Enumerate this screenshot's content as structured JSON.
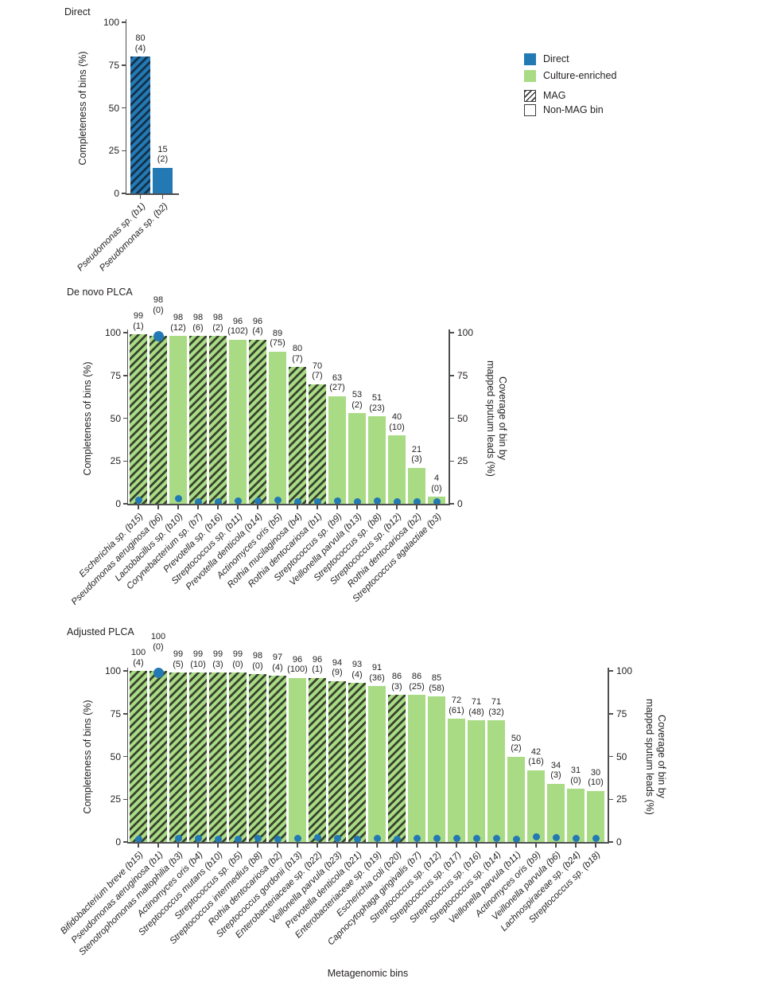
{
  "colors": {
    "direct_blue": "#2379b4",
    "culture_green": "#a9db85",
    "blue_hatch": "#14314a",
    "green_hatch": "#39442f",
    "dot_blue": "#2379b4",
    "axis_gray": "#4d4e50",
    "text": "#231f20"
  },
  "legend": {
    "items": [
      {
        "label": "Direct",
        "swatch": "direct"
      },
      {
        "label": "Culture-enriched",
        "swatch": "culture"
      },
      {
        "label": "MAG",
        "swatch": "mag"
      },
      {
        "label": "Non-MAG bin",
        "swatch": "nonmag"
      }
    ]
  },
  "chart_data": [
    {
      "type": "bar",
      "title": "Direct",
      "ylabel": "Completeness of bins (%)",
      "ylim": [
        0,
        100
      ],
      "yticks": [
        0,
        25,
        50,
        75,
        100
      ],
      "color_group": "blue",
      "bars": [
        {
          "label": "Pseudomonas sp. (b1)",
          "value": 80,
          "n": 4,
          "mag": true,
          "dot": null
        },
        {
          "label": "Pseudomonas sp. (b2)",
          "value": 15,
          "n": 2,
          "mag": false,
          "dot": null
        }
      ]
    },
    {
      "type": "bar",
      "title": "De novo PLCA",
      "ylabel": "Completeness of bins (%)",
      "y2label_lines": [
        "Coverage of bin by",
        "mapped sputum leads (%)"
      ],
      "ylim": [
        0,
        100
      ],
      "y2lim": [
        0,
        100
      ],
      "yticks": [
        0,
        25,
        50,
        75,
        100
      ],
      "y2ticks": [
        0,
        25,
        50,
        75,
        100
      ],
      "color_group": "green",
      "bars": [
        {
          "label": "Escherichia sp. (b15)",
          "value": 99,
          "n": 1,
          "mag": true,
          "dot": 2
        },
        {
          "label": "Pseudomonas aeruginosa (b6)",
          "value": 98,
          "n": 0,
          "mag": true,
          "dot": 98,
          "raise": 22
        },
        {
          "label": "Lactobacillus sp. (b10)",
          "value": 98,
          "n": 12,
          "mag": false,
          "dot": 3
        },
        {
          "label": "Corynebacterium sp. (b7)",
          "value": 98,
          "n": 6,
          "mag": true,
          "dot": 1
        },
        {
          "label": "Prevotella sp. (b16)",
          "value": 98,
          "n": 2,
          "mag": true,
          "dot": 1
        },
        {
          "label": "Streptococcus sp. (b11)",
          "value": 96,
          "n": 102,
          "mag": false,
          "dot": 1.5
        },
        {
          "label": "Prevotella denticola (b14)",
          "value": 96,
          "n": 4,
          "mag": true,
          "dot": 1.5
        },
        {
          "label": "Actinomyces oris (b5)",
          "value": 89,
          "n": 75,
          "mag": false,
          "dot": 2
        },
        {
          "label": "Rothia mucilaginosa (b4)",
          "value": 80,
          "n": 7,
          "mag": true,
          "dot": 1
        },
        {
          "label": "Rothia dentocariosa (b1)",
          "value": 70,
          "n": 7,
          "mag": true,
          "dot": 1
        },
        {
          "label": "Streptococcus sp. (b9)",
          "value": 63,
          "n": 27,
          "mag": false,
          "dot": 1.5
        },
        {
          "label": "Veillonella parvula (b13)",
          "value": 53,
          "n": 2,
          "mag": false,
          "dot": 1
        },
        {
          "label": "Streptococcus sp. (b8)",
          "value": 51,
          "n": 23,
          "mag": false,
          "dot": 1.5
        },
        {
          "label": "Streptococcus sp. (b12)",
          "value": 40,
          "n": 10,
          "mag": false,
          "dot": 1
        },
        {
          "label": "Rothia dentocariosa (b2)",
          "value": 21,
          "n": 3,
          "mag": false,
          "dot": 1
        },
        {
          "label": "Streptococcus agalactiae (b3)",
          "value": 4,
          "n": 0,
          "mag": false,
          "dot": 1
        }
      ]
    },
    {
      "type": "bar",
      "title": "Adjusted PLCA",
      "ylabel": "Completeness of bins (%)",
      "y2label_lines": [
        "Coverage of bin by",
        "mapped sputum leads (%)"
      ],
      "xlabel": "Metagenomic bins",
      "ylim": [
        0,
        100
      ],
      "y2lim": [
        0,
        100
      ],
      "yticks": [
        0,
        25,
        50,
        75,
        100
      ],
      "y2ticks": [
        0,
        25,
        50,
        75,
        100
      ],
      "color_group": "green",
      "bars": [
        {
          "label": "Bifidobacterium breve (b15)",
          "value": 100,
          "n": 4,
          "mag": true,
          "dot": 1.5
        },
        {
          "label": "Pseudomonas aeruginosa (b1)",
          "value": 100,
          "n": 0,
          "mag": true,
          "dot": 99,
          "raise": 20
        },
        {
          "label": "Stenotrophomonas maltophilia (b3)",
          "value": 99,
          "n": 5,
          "mag": true,
          "dot": 2
        },
        {
          "label": "Actinomyces oris (b4)",
          "value": 99,
          "n": 10,
          "mag": true,
          "dot": 2
        },
        {
          "label": "Streptococcus mutans (b10)",
          "value": 99,
          "n": 3,
          "mag": true,
          "dot": 1.5
        },
        {
          "label": "Streptococcus sp. (b5)",
          "value": 99,
          "n": 0,
          "mag": true,
          "dot": 1.5
        },
        {
          "label": "Streptococcus intermedius (b8)",
          "value": 98,
          "n": 0,
          "mag": true,
          "dot": 2
        },
        {
          "label": "Rothia dentocariosa (b2)",
          "value": 97,
          "n": 4,
          "mag": true,
          "dot": 1.5
        },
        {
          "label": "Streptococcus gordonii (b13)",
          "value": 96,
          "n": 100,
          "mag": false,
          "dot": 2
        },
        {
          "label": "Enterobacteriaceae sp. (b22)",
          "value": 96,
          "n": 1,
          "mag": true,
          "dot": 2.5
        },
        {
          "label": "Veillonella parvula (b23)",
          "value": 94,
          "n": 9,
          "mag": true,
          "dot": 2
        },
        {
          "label": "Prevotella denticola (b21)",
          "value": 93,
          "n": 4,
          "mag": true,
          "dot": 1.5
        },
        {
          "label": "Enterobacteriaceae sp. (b19)",
          "value": 91,
          "n": 36,
          "mag": false,
          "dot": 2
        },
        {
          "label": "Escherichia coli (b20)",
          "value": 86,
          "n": 3,
          "mag": true,
          "dot": 1.5
        },
        {
          "label": "Capnocytophaga gingivalis (b7)",
          "value": 86,
          "n": 25,
          "mag": false,
          "dot": 2
        },
        {
          "label": "Streptococcus sp. (b12)",
          "value": 85,
          "n": 58,
          "mag": false,
          "dot": 2
        },
        {
          "label": "Streptococcus sp. (b17)",
          "value": 72,
          "n": 61,
          "mag": false,
          "dot": 2
        },
        {
          "label": "Streptococcus sp. (b16)",
          "value": 71,
          "n": 48,
          "mag": false,
          "dot": 2
        },
        {
          "label": "Streptococcus sp. (b14)",
          "value": 71,
          "n": 32,
          "mag": false,
          "dot": 2
        },
        {
          "label": "Veillonella parvula (b11)",
          "value": 50,
          "n": 2,
          "mag": false,
          "dot": 1.5
        },
        {
          "label": "Actinomyces oris (b9)",
          "value": 42,
          "n": 16,
          "mag": false,
          "dot": 3
        },
        {
          "label": "Veillonella parvula (b6)",
          "value": 34,
          "n": 3,
          "mag": false,
          "dot": 2.5
        },
        {
          "label": "Lachnospiraceae sp. (b24)",
          "value": 31,
          "n": 0,
          "mag": false,
          "dot": 2
        },
        {
          "label": "Streptococcus sp. (b18)",
          "value": 30,
          "n": 10,
          "mag": false,
          "dot": 2
        }
      ]
    }
  ]
}
